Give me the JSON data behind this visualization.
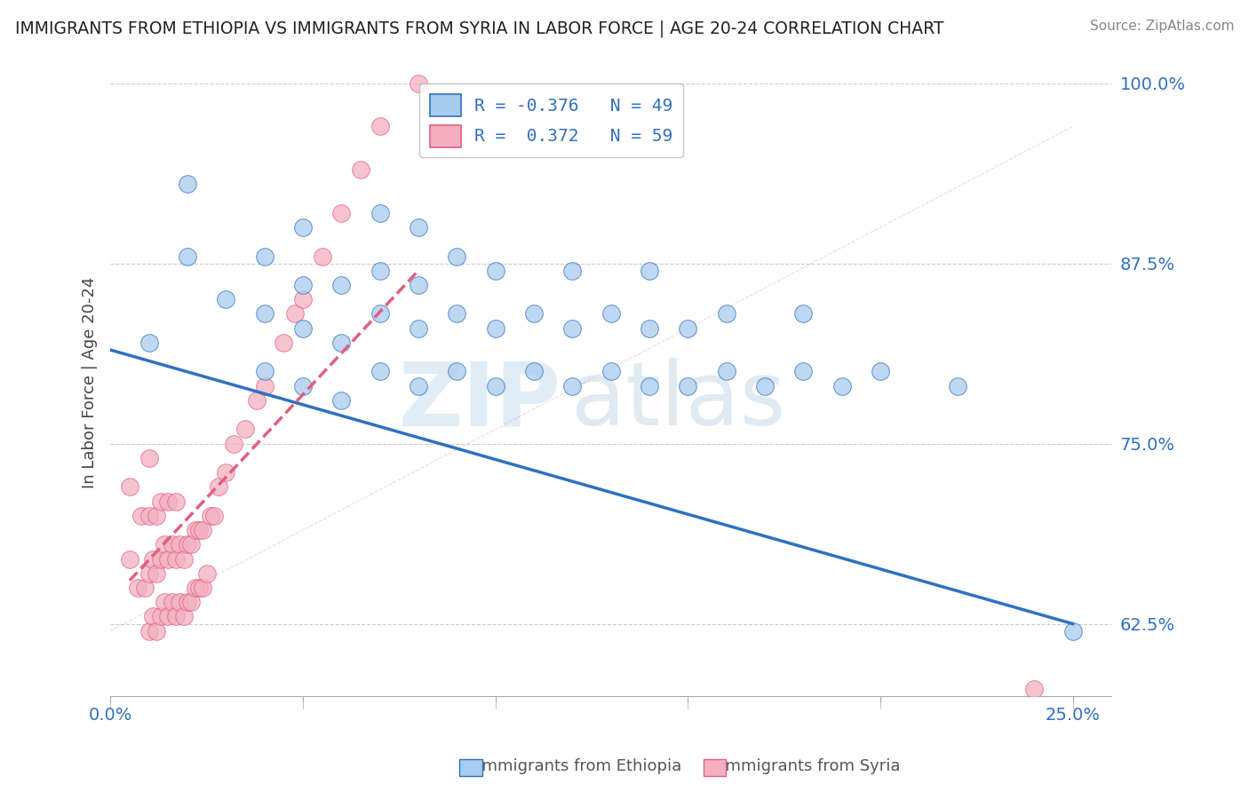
{
  "title": "IMMIGRANTS FROM ETHIOPIA VS IMMIGRANTS FROM SYRIA IN LABOR FORCE | AGE 20-24 CORRELATION CHART",
  "source": "Source: ZipAtlas.com",
  "ylabel": "In Labor Force | Age 20-24",
  "ethiopia_color": "#A8CCEE",
  "syria_color": "#F4B0C0",
  "ethiopia_line_color": "#3070C0",
  "syria_line_color": "#E06080",
  "legend_ethiopia_R": "-0.376",
  "legend_ethiopia_N": "49",
  "legend_syria_R": "0.372",
  "legend_syria_N": "59",
  "watermark_zip": "ZIP",
  "watermark_atlas": "atlas",
  "background_color": "#FFFFFF",
  "grid_color": "#CCCCCC",
  "xlim": [
    0.0,
    0.26
  ],
  "ylim": [
    0.575,
    1.01
  ],
  "ytick_vals": [
    0.625,
    0.75,
    0.875,
    1.0
  ],
  "ytick_labels": [
    "62.5%",
    "75.0%",
    "87.5%",
    "100.0%"
  ],
  "xtick_vals": [
    0.0,
    0.05,
    0.1,
    0.15,
    0.2,
    0.25
  ],
  "xtick_labels": [
    "0.0%",
    "",
    "",
    "",
    "",
    "25.0%"
  ],
  "ethiopia_x": [
    0.01,
    0.02,
    0.02,
    0.03,
    0.04,
    0.04,
    0.04,
    0.05,
    0.05,
    0.05,
    0.05,
    0.06,
    0.06,
    0.06,
    0.07,
    0.07,
    0.07,
    0.07,
    0.08,
    0.08,
    0.08,
    0.08,
    0.09,
    0.09,
    0.09,
    0.1,
    0.1,
    0.1,
    0.11,
    0.11,
    0.12,
    0.12,
    0.12,
    0.13,
    0.13,
    0.14,
    0.14,
    0.14,
    0.15,
    0.15,
    0.16,
    0.16,
    0.17,
    0.18,
    0.18,
    0.19,
    0.2,
    0.22,
    0.25
  ],
  "ethiopia_y": [
    0.82,
    0.88,
    0.93,
    0.85,
    0.8,
    0.84,
    0.88,
    0.79,
    0.83,
    0.86,
    0.9,
    0.78,
    0.82,
    0.86,
    0.8,
    0.84,
    0.87,
    0.91,
    0.79,
    0.83,
    0.86,
    0.9,
    0.8,
    0.84,
    0.88,
    0.79,
    0.83,
    0.87,
    0.8,
    0.84,
    0.79,
    0.83,
    0.87,
    0.8,
    0.84,
    0.79,
    0.83,
    0.87,
    0.79,
    0.83,
    0.8,
    0.84,
    0.79,
    0.8,
    0.84,
    0.79,
    0.8,
    0.79,
    0.62
  ],
  "syria_x": [
    0.005,
    0.005,
    0.007,
    0.008,
    0.009,
    0.01,
    0.01,
    0.01,
    0.01,
    0.011,
    0.011,
    0.012,
    0.012,
    0.012,
    0.013,
    0.013,
    0.013,
    0.014,
    0.014,
    0.015,
    0.015,
    0.015,
    0.016,
    0.016,
    0.017,
    0.017,
    0.017,
    0.018,
    0.018,
    0.019,
    0.019,
    0.02,
    0.02,
    0.021,
    0.021,
    0.022,
    0.022,
    0.023,
    0.023,
    0.024,
    0.024,
    0.025,
    0.026,
    0.027,
    0.028,
    0.03,
    0.032,
    0.035,
    0.038,
    0.04,
    0.045,
    0.048,
    0.05,
    0.055,
    0.06,
    0.065,
    0.07,
    0.08,
    0.24
  ],
  "syria_y": [
    0.67,
    0.72,
    0.65,
    0.7,
    0.65,
    0.62,
    0.66,
    0.7,
    0.74,
    0.63,
    0.67,
    0.62,
    0.66,
    0.7,
    0.63,
    0.67,
    0.71,
    0.64,
    0.68,
    0.63,
    0.67,
    0.71,
    0.64,
    0.68,
    0.63,
    0.67,
    0.71,
    0.64,
    0.68,
    0.63,
    0.67,
    0.64,
    0.68,
    0.64,
    0.68,
    0.65,
    0.69,
    0.65,
    0.69,
    0.65,
    0.69,
    0.66,
    0.7,
    0.7,
    0.72,
    0.73,
    0.75,
    0.76,
    0.78,
    0.79,
    0.82,
    0.84,
    0.85,
    0.88,
    0.91,
    0.94,
    0.97,
    1.0,
    0.58
  ],
  "ethiopia_trend_x": [
    0.0,
    0.25
  ],
  "ethiopia_trend_y": [
    0.815,
    0.625
  ],
  "syria_trend_x": [
    0.005,
    0.08
  ],
  "syria_trend_y": [
    0.655,
    0.87
  ]
}
